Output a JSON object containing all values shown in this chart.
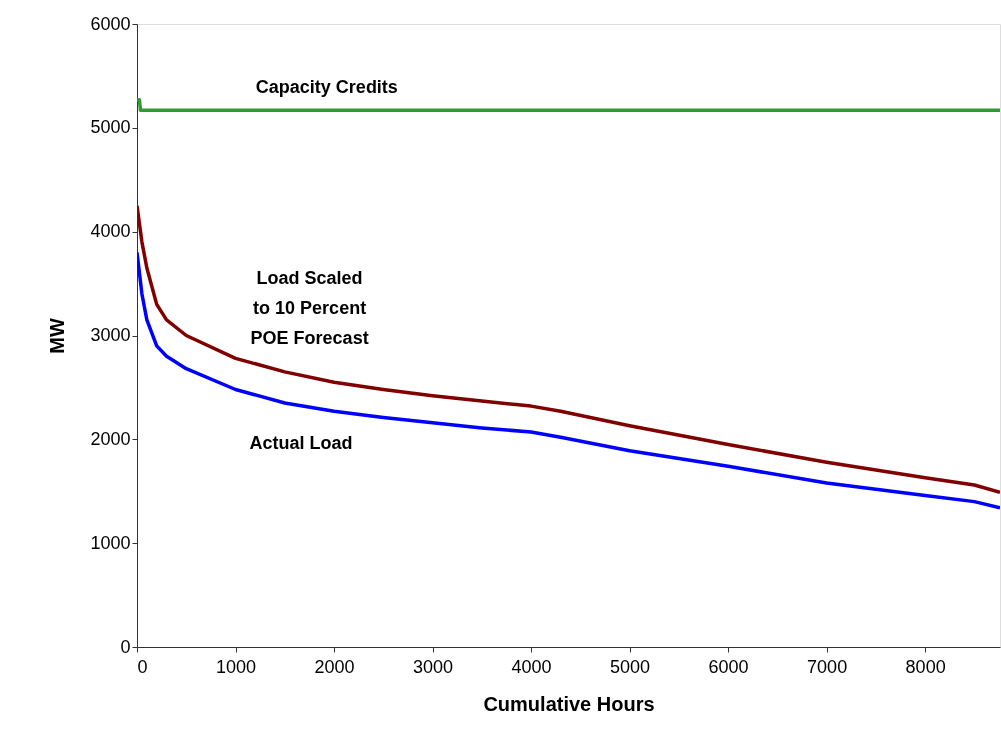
{
  "chart_data": {
    "type": "line",
    "xlabel": "Cumulative Hours",
    "ylabel": "MW",
    "xlim": [
      0,
      8760
    ],
    "ylim": [
      0,
      6000
    ],
    "xticks": [
      0,
      1000,
      2000,
      3000,
      4000,
      5000,
      6000,
      7000,
      8000
    ],
    "yticks": [
      0,
      1000,
      2000,
      3000,
      4000,
      5000,
      6000
    ],
    "grid": false,
    "legend": false,
    "marker": "none",
    "line_style": "solid",
    "series": [
      {
        "name": "Load Scaled\nto 10 Percent\nPOE Forecast",
        "color": "#800000",
        "x": [
          0,
          50,
          100,
          200,
          300,
          500,
          1000,
          1500,
          2000,
          2500,
          3000,
          3500,
          4000,
          4300,
          5000,
          6000,
          7000,
          8000,
          8500,
          8760
        ],
        "values": [
          4250,
          3900,
          3650,
          3300,
          3150,
          3000,
          2780,
          2650,
          2550,
          2480,
          2420,
          2370,
          2320,
          2270,
          2130,
          1950,
          1780,
          1630,
          1560,
          1490
        ]
      },
      {
        "name": "Actual Load",
        "color": "#0000ff",
        "x": [
          0,
          50,
          100,
          200,
          300,
          500,
          1000,
          1500,
          2000,
          2500,
          3000,
          3500,
          4000,
          4300,
          5000,
          6000,
          7000,
          8000,
          8500,
          8760
        ],
        "values": [
          3800,
          3400,
          3150,
          2900,
          2800,
          2680,
          2480,
          2350,
          2270,
          2210,
          2160,
          2110,
          2070,
          2020,
          1890,
          1740,
          1580,
          1460,
          1400,
          1340
        ]
      },
      {
        "name": "Capacity Credits",
        "color": "#339933",
        "x": [
          0,
          25,
          35,
          8760
        ],
        "values": [
          5270,
          5270,
          5170,
          5170
        ]
      }
    ]
  }
}
